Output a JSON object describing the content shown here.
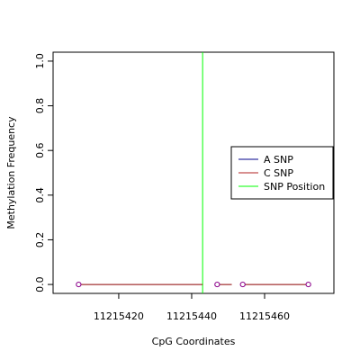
{
  "chart_data": {
    "type": "line",
    "title": "",
    "xlabel": "CpG Coordinates",
    "ylabel": "Methylation Frequency",
    "xlim": [
      11215402,
      11215479
    ],
    "ylim": [
      -0.04,
      1.04
    ],
    "x_ticks": [
      11215420,
      11215440,
      11215460
    ],
    "y_ticks": [
      0.0,
      0.2,
      0.4,
      0.6,
      0.8,
      1.0
    ],
    "x_tick_labels": [
      "11215420",
      "11215440",
      "11215460"
    ],
    "y_tick_labels": [
      "0.0",
      "0.2",
      "0.4",
      "0.6",
      "0.8",
      "1.0"
    ],
    "grid": false,
    "legend_position": "right",
    "legend": [
      {
        "label": "A SNP",
        "color": "#00008B"
      },
      {
        "label": "C SNP",
        "color": "#B22222"
      },
      {
        "label": "SNP Position",
        "color": "#00FF00"
      }
    ],
    "series": [
      {
        "name": "C SNP",
        "color": "#8B0000",
        "marker_color": "#8B008B",
        "segments": [
          [
            [
              11215409,
              0.0
            ],
            [
              11215443,
              0.0
            ]
          ],
          [
            [
              11215447,
              0.0
            ],
            [
              11215451,
              0.0
            ]
          ],
          [
            [
              11215454,
              0.0
            ],
            [
              11215472,
              0.0
            ]
          ]
        ],
        "points": [
          [
            11215409,
            0.0
          ],
          [
            11215447,
            0.0
          ],
          [
            11215454,
            0.0
          ],
          [
            11215472,
            0.0
          ]
        ]
      }
    ],
    "snp_position": 11215443
  }
}
